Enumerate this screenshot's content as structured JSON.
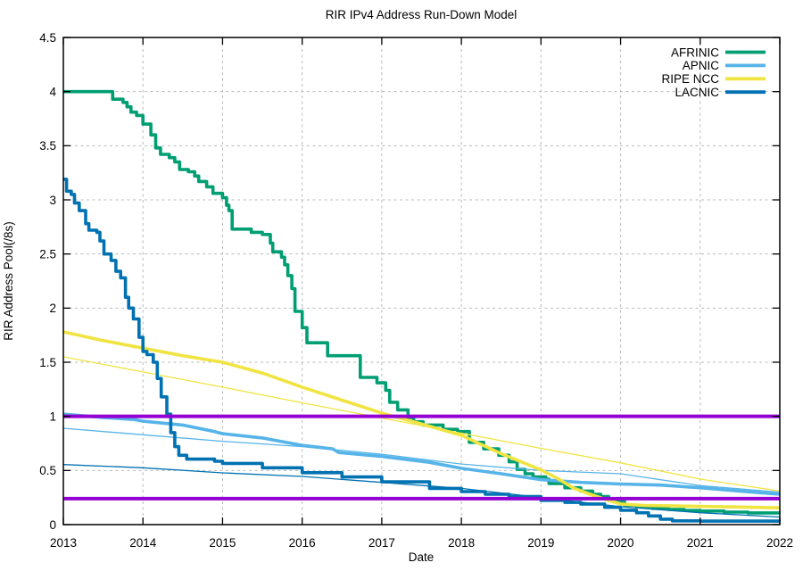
{
  "chart_data": {
    "type": "line",
    "title": "RIR IPv4 Address Run-Down Model",
    "xlabel": "Date",
    "ylabel": "RIR Address Pool(/8s)",
    "x_range": [
      2013,
      2022
    ],
    "y_range": [
      0,
      4.5
    ],
    "x_ticks": [
      2013,
      2014,
      2015,
      2016,
      2017,
      2018,
      2019,
      2020,
      2021,
      2022
    ],
    "x_tick_labels": [
      "2013",
      "2014",
      "2015",
      "2016",
      "2017",
      "2018",
      "2019",
      "2020",
      "2021",
      "2022"
    ],
    "y_ticks": [
      0,
      0.5,
      1,
      1.5,
      2,
      2.5,
      3,
      3.5,
      4,
      4.5
    ],
    "y_tick_labels": [
      "0",
      "0.5",
      "1",
      "1.5",
      "2",
      "2.5",
      "3",
      "3.5",
      "4",
      "4.5"
    ],
    "grid": true,
    "legend_position": "top-right-inside",
    "colors": {
      "afrinic": "#009E73",
      "apnic": "#56B4E9",
      "ripe_ncc": "#F0E442",
      "lacnic": "#0072B2",
      "threshold": "#9400D3",
      "grid": "#b9b9b9",
      "border": "#000000"
    },
    "thresholds": [
      {
        "name": "upper-threshold",
        "value": 1.0,
        "color": "#9400D3",
        "width": 4
      },
      {
        "name": "lower-threshold",
        "value": 0.24,
        "color": "#9400D3",
        "width": 4
      }
    ],
    "series": [
      {
        "name": "AFRINIC",
        "role": "actual",
        "legend": true,
        "color": "#009E73",
        "width": 3.6,
        "interp": "step",
        "points": [
          [
            2013.0,
            4.0
          ],
          [
            2013.55,
            4.0
          ],
          [
            2013.62,
            3.93
          ],
          [
            2013.75,
            3.9
          ],
          [
            2013.8,
            3.86
          ],
          [
            2013.85,
            3.81
          ],
          [
            2013.92,
            3.78
          ],
          [
            2014.0,
            3.7
          ],
          [
            2014.1,
            3.6
          ],
          [
            2014.16,
            3.48
          ],
          [
            2014.22,
            3.42
          ],
          [
            2014.33,
            3.39
          ],
          [
            2014.4,
            3.35
          ],
          [
            2014.46,
            3.28
          ],
          [
            2014.57,
            3.26
          ],
          [
            2014.65,
            3.22
          ],
          [
            2014.7,
            3.17
          ],
          [
            2014.8,
            3.12
          ],
          [
            2014.88,
            3.06
          ],
          [
            2015.0,
            3.02
          ],
          [
            2015.05,
            2.95
          ],
          [
            2015.08,
            2.9
          ],
          [
            2015.12,
            2.73
          ],
          [
            2015.36,
            2.7
          ],
          [
            2015.5,
            2.68
          ],
          [
            2015.6,
            2.6
          ],
          [
            2015.63,
            2.52
          ],
          [
            2015.74,
            2.47
          ],
          [
            2015.78,
            2.4
          ],
          [
            2015.82,
            2.3
          ],
          [
            2015.87,
            2.18
          ],
          [
            2015.91,
            1.97
          ],
          [
            2016.0,
            1.82
          ],
          [
            2016.06,
            1.68
          ],
          [
            2016.32,
            1.56
          ],
          [
            2016.73,
            1.36
          ],
          [
            2016.94,
            1.31
          ],
          [
            2017.05,
            1.24
          ],
          [
            2017.1,
            1.13
          ],
          [
            2017.2,
            1.06
          ],
          [
            2017.33,
            0.99
          ],
          [
            2017.4,
            0.95
          ],
          [
            2017.52,
            0.92
          ],
          [
            2017.77,
            0.88
          ],
          [
            2017.95,
            0.86
          ],
          [
            2018.1,
            0.76
          ],
          [
            2018.28,
            0.7
          ],
          [
            2018.47,
            0.64
          ],
          [
            2018.6,
            0.58
          ],
          [
            2018.7,
            0.51
          ],
          [
            2018.8,
            0.47
          ],
          [
            2018.9,
            0.44
          ],
          [
            2019.06,
            0.42
          ],
          [
            2019.1,
            0.38
          ],
          [
            2019.3,
            0.34
          ],
          [
            2019.5,
            0.31
          ],
          [
            2019.65,
            0.28
          ],
          [
            2019.75,
            0.26
          ],
          [
            2019.85,
            0.23
          ],
          [
            2019.95,
            0.21
          ],
          [
            2020.05,
            0.18
          ],
          [
            2020.2,
            0.165
          ],
          [
            2020.4,
            0.15
          ],
          [
            2020.6,
            0.14
          ],
          [
            2020.8,
            0.13
          ],
          [
            2021.0,
            0.125
          ],
          [
            2021.3,
            0.115
          ],
          [
            2021.6,
            0.108
          ],
          [
            2022.0,
            0.1
          ]
        ]
      },
      {
        "name": "APNIC",
        "role": "actual",
        "legend": true,
        "color": "#56B4E9",
        "width": 3.6,
        "interp": "linear",
        "points": [
          [
            2013.0,
            1.02
          ],
          [
            2013.5,
            0.99
          ],
          [
            2013.9,
            0.97
          ],
          [
            2014.0,
            0.955
          ],
          [
            2014.5,
            0.92
          ],
          [
            2014.9,
            0.86
          ],
          [
            2015.0,
            0.84
          ],
          [
            2015.5,
            0.8
          ],
          [
            2016.0,
            0.732
          ],
          [
            2016.38,
            0.7
          ],
          [
            2016.46,
            0.666
          ],
          [
            2017.0,
            0.63
          ],
          [
            2017.6,
            0.575
          ],
          [
            2018.0,
            0.52
          ],
          [
            2018.5,
            0.47
          ],
          [
            2019.0,
            0.415
          ],
          [
            2019.5,
            0.39
          ],
          [
            2020.0,
            0.375
          ],
          [
            2020.5,
            0.365
          ],
          [
            2021.0,
            0.34
          ],
          [
            2021.5,
            0.31
          ],
          [
            2022.0,
            0.28
          ]
        ]
      },
      {
        "name": "APNIC model",
        "role": "model",
        "legend": false,
        "color": "#56B4E9",
        "width": 1.3,
        "interp": "linear",
        "points": [
          [
            2013,
            0.89
          ],
          [
            2014,
            0.83
          ],
          [
            2015,
            0.77
          ],
          [
            2016,
            0.72
          ],
          [
            2017,
            0.65
          ],
          [
            2018,
            0.56
          ],
          [
            2019,
            0.5
          ],
          [
            2020,
            0.47
          ],
          [
            2021,
            0.36
          ],
          [
            2022,
            0.3
          ]
        ]
      },
      {
        "name": "RIPE NCC",
        "role": "actual",
        "legend": true,
        "color": "#F0E442",
        "width": 3.6,
        "interp": "linear",
        "points": [
          [
            2013.0,
            1.78
          ],
          [
            2013.5,
            1.7
          ],
          [
            2014.0,
            1.63
          ],
          [
            2014.5,
            1.56
          ],
          [
            2015.0,
            1.5
          ],
          [
            2015.5,
            1.4
          ],
          [
            2016.0,
            1.27
          ],
          [
            2016.5,
            1.15
          ],
          [
            2017.0,
            1.03
          ],
          [
            2017.5,
            0.93
          ],
          [
            2018.0,
            0.825
          ],
          [
            2018.5,
            0.655
          ],
          [
            2019.0,
            0.505
          ],
          [
            2019.2,
            0.43
          ],
          [
            2019.4,
            0.34
          ],
          [
            2019.6,
            0.285
          ],
          [
            2019.8,
            0.235
          ],
          [
            2020.0,
            0.19
          ],
          [
            2020.3,
            0.177
          ],
          [
            2020.7,
            0.172
          ],
          [
            2021.0,
            0.168
          ],
          [
            2021.5,
            0.162
          ],
          [
            2022.0,
            0.155
          ]
        ]
      },
      {
        "name": "RIPE NCC model",
        "role": "model",
        "legend": false,
        "color": "#F0E442",
        "width": 1.3,
        "interp": "linear",
        "points": [
          [
            2013,
            1.55
          ],
          [
            2014,
            1.41
          ],
          [
            2015,
            1.27
          ],
          [
            2016,
            1.125
          ],
          [
            2017,
            0.985
          ],
          [
            2018,
            0.845
          ],
          [
            2019,
            0.705
          ],
          [
            2020,
            0.57
          ],
          [
            2021,
            0.42
          ],
          [
            2022,
            0.31
          ]
        ]
      },
      {
        "name": "LACNIC",
        "role": "actual",
        "legend": true,
        "color": "#0072B2",
        "width": 3.6,
        "interp": "step",
        "points": [
          [
            2013.0,
            3.19
          ],
          [
            2013.04,
            3.08
          ],
          [
            2013.1,
            3.05
          ],
          [
            2013.14,
            2.97
          ],
          [
            2013.2,
            2.9
          ],
          [
            2013.28,
            2.78
          ],
          [
            2013.32,
            2.72
          ],
          [
            2013.42,
            2.7
          ],
          [
            2013.46,
            2.62
          ],
          [
            2013.51,
            2.5
          ],
          [
            2013.6,
            2.44
          ],
          [
            2013.66,
            2.34
          ],
          [
            2013.72,
            2.28
          ],
          [
            2013.78,
            2.1
          ],
          [
            2013.82,
            2.0
          ],
          [
            2013.88,
            1.9
          ],
          [
            2013.95,
            1.73
          ],
          [
            2014.0,
            1.6
          ],
          [
            2014.05,
            1.57
          ],
          [
            2014.13,
            1.5
          ],
          [
            2014.18,
            1.35
          ],
          [
            2014.23,
            1.18
          ],
          [
            2014.3,
            1.02
          ],
          [
            2014.35,
            0.85
          ],
          [
            2014.4,
            0.72
          ],
          [
            2014.45,
            0.64
          ],
          [
            2014.55,
            0.605
          ],
          [
            2014.9,
            0.585
          ],
          [
            2015.0,
            0.565
          ],
          [
            2015.5,
            0.525
          ],
          [
            2016.0,
            0.48
          ],
          [
            2016.5,
            0.44
          ],
          [
            2017.0,
            0.395
          ],
          [
            2017.6,
            0.335
          ],
          [
            2018.0,
            0.305
          ],
          [
            2018.3,
            0.28
          ],
          [
            2018.6,
            0.26
          ],
          [
            2019.0,
            0.224
          ],
          [
            2019.3,
            0.205
          ],
          [
            2019.5,
            0.19
          ],
          [
            2019.8,
            0.16
          ],
          [
            2020.0,
            0.133
          ],
          [
            2020.2,
            0.11
          ],
          [
            2020.35,
            0.08
          ],
          [
            2020.5,
            0.05
          ],
          [
            2020.65,
            0.035
          ],
          [
            2021.0,
            0.032
          ],
          [
            2022.0,
            0.03
          ]
        ]
      },
      {
        "name": "LACNIC model",
        "role": "model",
        "legend": false,
        "color": "#0072B2",
        "width": 1.3,
        "interp": "linear",
        "points": [
          [
            2013,
            0.555
          ],
          [
            2014,
            0.525
          ],
          [
            2015,
            0.478
          ],
          [
            2016,
            0.445
          ],
          [
            2017,
            0.39
          ],
          [
            2018,
            0.335
          ],
          [
            2019,
            0.25
          ],
          [
            2020,
            0.166
          ],
          [
            2021,
            0.11
          ],
          [
            2022,
            0.07
          ]
        ]
      }
    ]
  }
}
